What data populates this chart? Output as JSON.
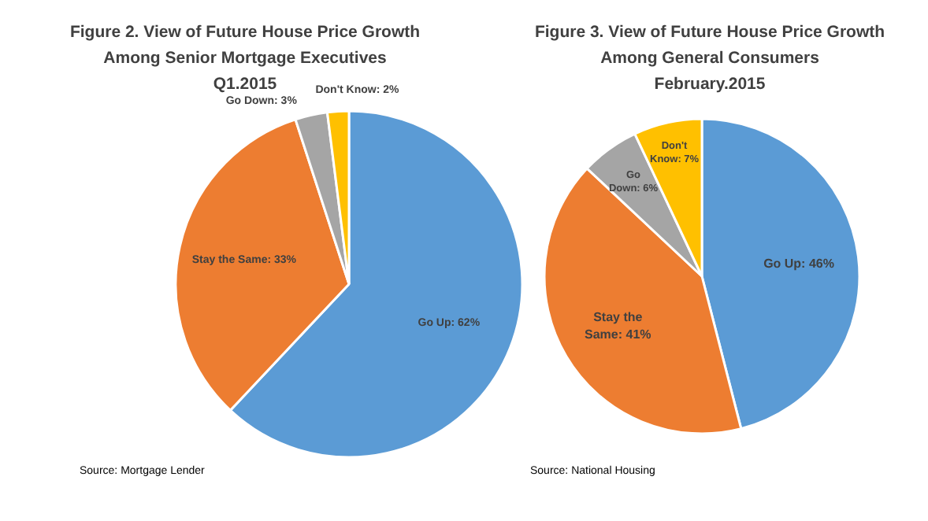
{
  "chart_data": [
    {
      "type": "pie",
      "title": "Figure 2. View of Future House Price Growth Among Senior Mortgage Executives",
      "subtitle": "Q1.2015",
      "categories": [
        "Go Up",
        "Stay the Same",
        "Go Down",
        "Don't Know"
      ],
      "values": [
        62,
        33,
        3,
        2
      ],
      "colors": [
        "#5b9bd5",
        "#ed7d31",
        "#a5a5a5",
        "#ffc000"
      ],
      "value_labels": [
        "62%",
        "33%",
        "3%",
        "2%"
      ],
      "annotations": [
        "Source: Mortgage Lender"
      ]
    },
    {
      "type": "pie",
      "title": "Figure 3. View of Future House Price Growth Among General Consumers",
      "subtitle": "February.2015",
      "categories": [
        "Go Up",
        "Stay the Same",
        "Go Down",
        "Don't Know"
      ],
      "values": [
        46,
        41,
        6,
        7
      ],
      "colors": [
        "#5b9bd5",
        "#ed7d31",
        "#a5a5a5",
        "#ffc000"
      ],
      "value_labels": [
        "46%",
        "41%",
        "6%",
        "7%"
      ],
      "annotations": [
        "Source: National Housing"
      ]
    }
  ]
}
